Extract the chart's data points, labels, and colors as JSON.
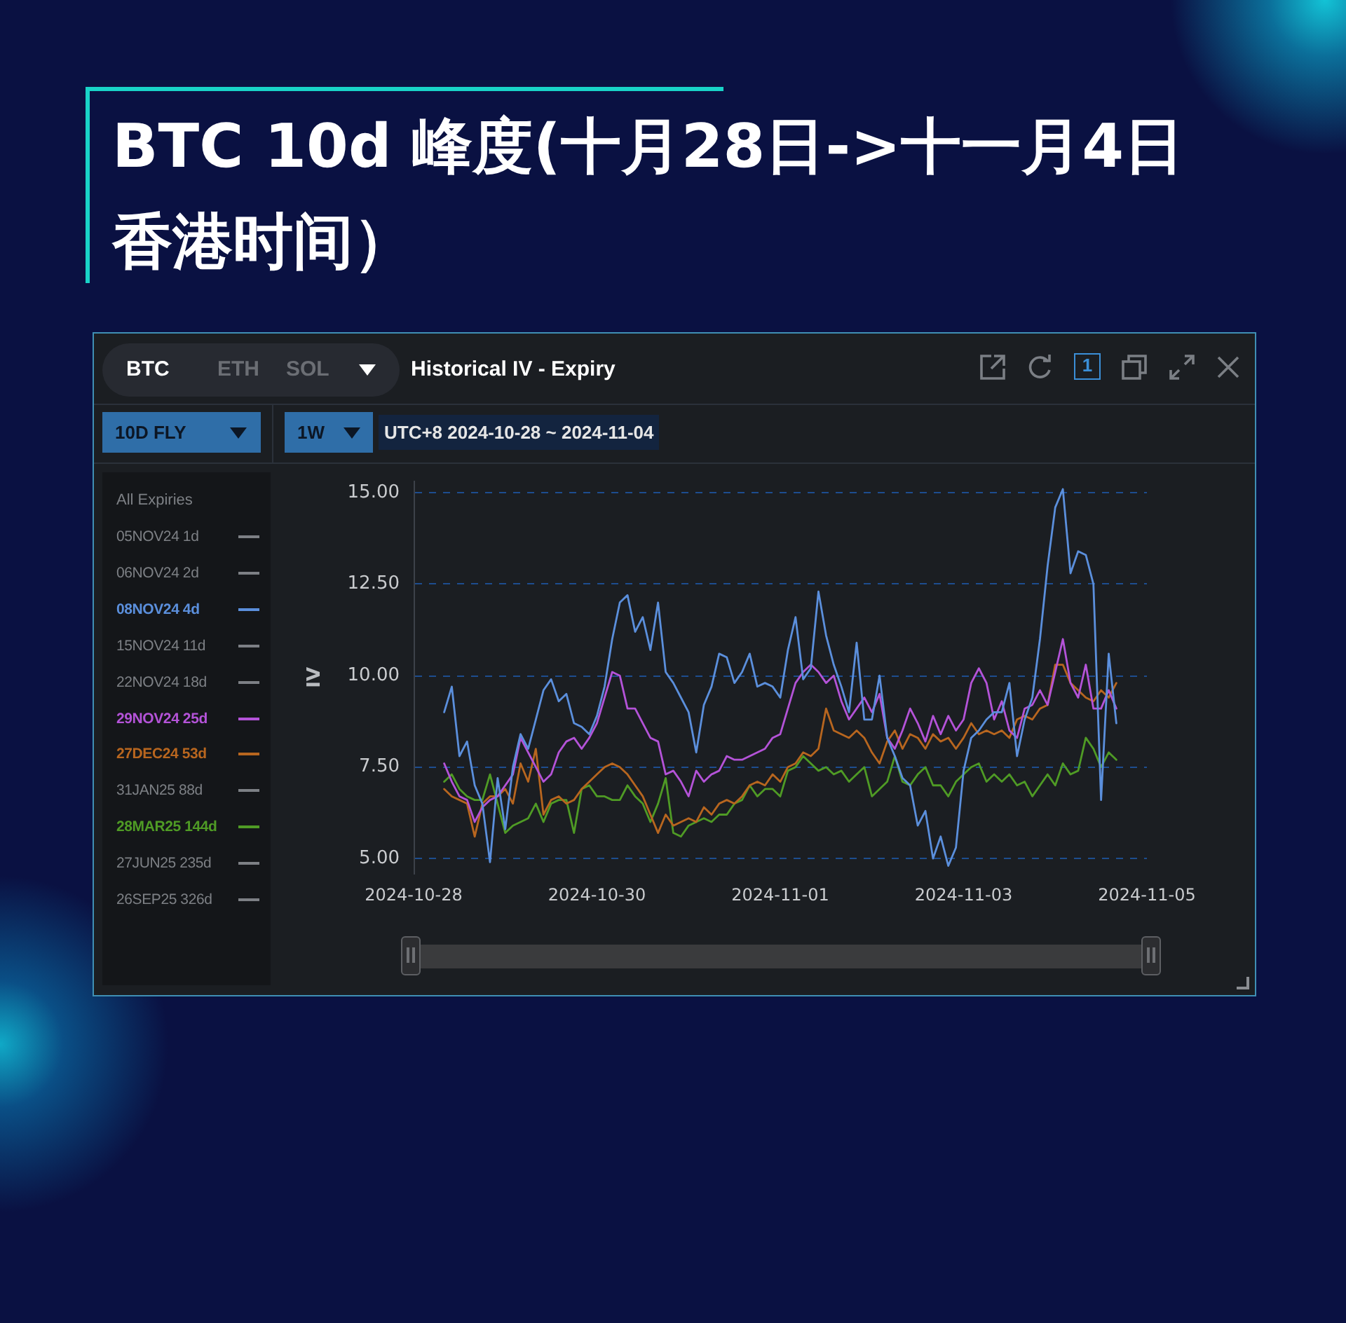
{
  "chart_data": {
    "type": "line",
    "title": "BTC 10d 峰度(十月28日->十一月4日香港时间）",
    "subtitle": "Historical IV - Expiry",
    "ylabel": "IV",
    "legend_title": "All Expiries",
    "annotations": [
      "BTC",
      "ETH",
      "SOL",
      "1",
      "10D FLY",
      "1W",
      "UTC+8 2024-10-28 ~ 2024-11-04"
    ],
    "x": [
      "2024-10-28T08:00",
      "2024-10-28T10:00",
      "2024-10-28T12:00",
      "2024-10-28T14:00",
      "2024-10-28T16:00",
      "2024-10-28T18:00",
      "2024-10-28T20:00",
      "2024-10-28T22:00",
      "2024-10-29T00:00",
      "2024-10-29T02:00",
      "2024-10-29T04:00",
      "2024-10-29T06:00",
      "2024-10-29T08:00",
      "2024-10-29T10:00",
      "2024-10-29T12:00",
      "2024-10-29T14:00",
      "2024-10-29T16:00",
      "2024-10-29T18:00",
      "2024-10-29T20:00",
      "2024-10-29T22:00",
      "2024-10-30T00:00",
      "2024-10-30T02:00",
      "2024-10-30T04:00",
      "2024-10-30T06:00",
      "2024-10-30T08:00",
      "2024-10-30T10:00",
      "2024-10-30T12:00",
      "2024-10-30T14:00",
      "2024-10-30T16:00",
      "2024-10-30T18:00",
      "2024-10-30T20:00",
      "2024-10-30T22:00",
      "2024-10-31T00:00",
      "2024-10-31T02:00",
      "2024-10-31T04:00",
      "2024-10-31T06:00",
      "2024-10-31T08:00",
      "2024-10-31T10:00",
      "2024-10-31T12:00",
      "2024-10-31T14:00",
      "2024-10-31T16:00",
      "2024-10-31T18:00",
      "2024-10-31T20:00",
      "2024-10-31T22:00",
      "2024-11-01T00:00",
      "2024-11-01T02:00",
      "2024-11-01T04:00",
      "2024-11-01T06:00",
      "2024-11-01T08:00",
      "2024-11-01T10:00",
      "2024-11-01T12:00",
      "2024-11-01T14:00",
      "2024-11-01T16:00",
      "2024-11-01T18:00",
      "2024-11-01T20:00",
      "2024-11-01T22:00",
      "2024-11-02T00:00",
      "2024-11-02T02:00",
      "2024-11-02T04:00",
      "2024-11-02T06:00",
      "2024-11-02T08:00",
      "2024-11-02T10:00",
      "2024-11-02T12:00",
      "2024-11-02T14:00",
      "2024-11-02T16:00",
      "2024-11-02T18:00",
      "2024-11-02T20:00",
      "2024-11-02T22:00",
      "2024-11-03T00:00",
      "2024-11-03T02:00",
      "2024-11-03T04:00",
      "2024-11-03T06:00",
      "2024-11-03T08:00",
      "2024-11-03T10:00",
      "2024-11-03T12:00",
      "2024-11-03T14:00",
      "2024-11-03T16:00",
      "2024-11-03T18:00",
      "2024-11-03T20:00",
      "2024-11-03T22:00",
      "2024-11-04T00:00",
      "2024-11-04T02:00",
      "2024-11-04T04:00",
      "2024-11-04T06:00",
      "2024-11-04T08:00",
      "2024-11-04T10:00",
      "2024-11-04T12:00",
      "2024-11-04T14:00",
      "2024-11-04T16:00"
    ],
    "series": [
      {
        "name": "05NOV24 1d",
        "color": "#7d8085",
        "values": [
          null,
          null,
          null,
          null,
          null,
          null,
          null,
          null,
          null,
          null,
          null,
          null,
          null,
          null,
          null,
          null,
          null,
          null,
          null,
          null,
          null,
          null,
          null,
          null,
          null,
          null,
          null,
          null,
          null,
          null,
          null,
          null,
          null,
          null,
          null,
          null,
          null,
          null,
          null,
          null,
          null,
          null,
          null,
          null,
          null,
          null,
          null,
          null,
          null,
          null,
          null,
          null,
          null,
          null,
          null,
          null,
          null,
          null,
          null,
          null,
          null,
          null,
          null,
          null,
          null,
          null,
          null,
          null,
          null,
          null,
          null,
          null,
          null,
          null,
          null,
          null,
          null,
          null,
          null,
          null,
          null,
          null,
          null,
          null,
          null,
          null,
          null,
          null,
          null
        ]
      },
      {
        "name": "06NOV24 2d",
        "color": "#7d8085",
        "values": [
          null,
          null,
          null,
          null,
          null,
          null,
          null,
          null,
          null,
          null,
          null,
          null,
          null,
          null,
          null,
          null,
          null,
          null,
          null,
          null,
          null,
          null,
          null,
          null,
          null,
          null,
          null,
          null,
          null,
          null,
          null,
          null,
          null,
          null,
          null,
          null,
          null,
          null,
          null,
          null,
          null,
          null,
          null,
          null,
          null,
          null,
          null,
          null,
          null,
          null,
          null,
          null,
          null,
          null,
          null,
          null,
          null,
          null,
          null,
          null,
          null,
          null,
          null,
          null,
          null,
          null,
          null,
          null,
          null,
          null,
          null,
          null,
          null,
          null,
          null,
          null,
          null,
          null,
          null,
          null,
          null,
          null,
          null,
          null,
          null,
          null,
          null,
          null,
          null
        ]
      },
      {
        "name": "08NOV24 4d",
        "color": "#5b8fdc",
        "values": [
          9.0,
          9.7,
          7.8,
          8.2,
          7.0,
          6.5,
          4.9,
          7.2,
          5.8,
          7.5,
          8.4,
          8.0,
          8.8,
          9.6,
          9.9,
          9.3,
          9.5,
          8.7,
          8.6,
          8.4,
          8.9,
          9.7,
          11.0,
          12.0,
          12.2,
          11.2,
          11.6,
          10.7,
          12.0,
          10.1,
          9.8,
          9.4,
          9.0,
          7.9,
          9.2,
          9.7,
          10.6,
          10.5,
          9.8,
          10.1,
          10.6,
          9.7,
          9.8,
          9.7,
          9.4,
          10.7,
          11.6,
          9.9,
          10.2,
          12.3,
          11.1,
          10.3,
          9.7,
          9.0,
          10.9,
          8.8,
          8.8,
          10.0,
          8.3,
          7.8,
          7.2,
          7.0,
          5.9,
          6.3,
          5.0,
          5.6,
          4.8,
          5.3,
          7.4,
          8.3,
          8.5,
          8.8,
          9.0,
          9.0,
          9.8,
          7.8,
          8.8,
          9.4,
          11.0,
          13.0,
          14.6,
          15.1,
          12.8,
          13.4,
          13.3,
          12.5,
          6.6,
          10.6,
          8.7
        ]
      },
      {
        "name": "15NOV24 11d",
        "color": "#7d8085",
        "values": [
          null,
          null,
          null,
          null,
          null,
          null,
          null,
          null,
          null,
          null,
          null,
          null,
          null,
          null,
          null,
          null,
          null,
          null,
          null,
          null,
          null,
          null,
          null,
          null,
          null,
          null,
          null,
          null,
          null,
          null,
          null,
          null,
          null,
          null,
          null,
          null,
          null,
          null,
          null,
          null,
          null,
          null,
          null,
          null,
          null,
          null,
          null,
          null,
          null,
          null,
          null,
          null,
          null,
          null,
          null,
          null,
          null,
          null,
          null,
          null,
          null,
          null,
          null,
          null,
          null,
          null,
          null,
          null,
          null,
          null,
          null,
          null,
          null,
          null,
          null,
          null,
          null,
          null,
          null,
          null,
          null,
          null,
          null,
          null,
          null,
          null,
          null,
          null,
          null
        ]
      },
      {
        "name": "22NOV24 18d",
        "color": "#7d8085",
        "values": [
          null,
          null,
          null,
          null,
          null,
          null,
          null,
          null,
          null,
          null,
          null,
          null,
          null,
          null,
          null,
          null,
          null,
          null,
          null,
          null,
          null,
          null,
          null,
          null,
          null,
          null,
          null,
          null,
          null,
          null,
          null,
          null,
          null,
          null,
          null,
          null,
          null,
          null,
          null,
          null,
          null,
          null,
          null,
          null,
          null,
          null,
          null,
          null,
          null,
          null,
          null,
          null,
          null,
          null,
          null,
          null,
          null,
          null,
          null,
          null,
          null,
          null,
          null,
          null,
          null,
          null,
          null,
          null,
          null,
          null,
          null,
          null,
          null,
          null,
          null,
          null,
          null,
          null,
          null,
          null,
          null,
          null,
          null,
          null,
          null,
          null,
          null,
          null,
          null
        ]
      },
      {
        "name": "29NOV24 25d",
        "color": "#b453d8",
        "values": [
          7.6,
          7.1,
          6.7,
          6.6,
          6.0,
          6.4,
          6.6,
          6.7,
          7.0,
          7.3,
          8.3,
          7.9,
          7.5,
          7.1,
          7.3,
          7.9,
          8.2,
          8.3,
          8.0,
          8.3,
          8.7,
          9.4,
          10.1,
          10.0,
          9.1,
          9.1,
          8.7,
          8.3,
          8.2,
          7.3,
          7.4,
          7.1,
          6.7,
          7.4,
          7.1,
          7.3,
          7.4,
          7.8,
          7.7,
          7.7,
          7.8,
          7.9,
          8.0,
          8.3,
          8.4,
          9.1,
          9.8,
          10.1,
          10.3,
          10.1,
          9.8,
          10.0,
          9.3,
          8.8,
          9.1,
          9.4,
          9.0,
          9.5,
          8.3,
          8.0,
          8.5,
          9.1,
          8.7,
          8.2,
          8.9,
          8.4,
          8.9,
          8.5,
          8.8,
          9.8,
          10.2,
          9.8,
          8.8,
          9.3,
          8.5,
          8.3,
          9.1,
          9.2,
          9.6,
          9.2,
          10.1,
          11.0,
          9.8,
          9.4,
          10.3,
          9.1,
          9.1,
          9.6,
          9.1
        ]
      },
      {
        "name": "27DEC24 53d",
        "color": "#b8661f",
        "values": [
          6.9,
          6.7,
          6.6,
          6.5,
          5.6,
          6.5,
          6.7,
          6.7,
          6.9,
          6.5,
          7.6,
          7.1,
          8.0,
          6.2,
          6.6,
          6.7,
          6.5,
          6.6,
          6.9,
          7.1,
          7.3,
          7.5,
          7.6,
          7.5,
          7.3,
          7.0,
          6.7,
          6.2,
          5.7,
          6.2,
          5.9,
          6.0,
          6.1,
          6.0,
          6.4,
          6.2,
          6.5,
          6.6,
          6.5,
          6.7,
          7.0,
          7.1,
          7.0,
          7.3,
          7.1,
          7.5,
          7.6,
          7.9,
          7.8,
          8.0,
          9.1,
          8.5,
          8.4,
          8.3,
          8.5,
          8.3,
          7.9,
          7.6,
          8.2,
          8.5,
          8.0,
          8.4,
          8.3,
          8.0,
          8.4,
          8.2,
          8.3,
          8.0,
          8.3,
          8.7,
          8.4,
          8.5,
          8.4,
          8.5,
          8.3,
          8.8,
          8.9,
          8.8,
          9.1,
          9.2,
          10.3,
          10.3,
          9.8,
          9.6,
          9.4,
          9.3,
          9.6,
          9.4,
          9.8
        ]
      },
      {
        "name": "31JAN25 88d",
        "color": "#7d8085",
        "values": [
          null,
          null,
          null,
          null,
          null,
          null,
          null,
          null,
          null,
          null,
          null,
          null,
          null,
          null,
          null,
          null,
          null,
          null,
          null,
          null,
          null,
          null,
          null,
          null,
          null,
          null,
          null,
          null,
          null,
          null,
          null,
          null,
          null,
          null,
          null,
          null,
          null,
          null,
          null,
          null,
          null,
          null,
          null,
          null,
          null,
          null,
          null,
          null,
          null,
          null,
          null,
          null,
          null,
          null,
          null,
          null,
          null,
          null,
          null,
          null,
          null,
          null,
          null,
          null,
          null,
          null,
          null,
          null,
          null,
          null,
          null,
          null,
          null,
          null,
          null,
          null,
          null,
          null,
          null,
          null,
          null,
          null,
          null,
          null,
          null,
          null,
          null,
          null,
          null
        ]
      },
      {
        "name": "28MAR25 144d",
        "color": "#4f9b25",
        "values": [
          7.1,
          7.3,
          6.9,
          6.7,
          6.6,
          6.6,
          7.3,
          6.5,
          5.7,
          5.9,
          6.0,
          6.1,
          6.5,
          6.0,
          6.5,
          6.6,
          6.6,
          5.7,
          6.9,
          7.0,
          6.7,
          6.7,
          6.6,
          6.6,
          7.0,
          6.7,
          6.5,
          6.0,
          6.5,
          7.2,
          5.7,
          5.6,
          5.9,
          6.0,
          6.1,
          6.0,
          6.2,
          6.2,
          6.5,
          6.6,
          7.0,
          6.7,
          6.9,
          6.9,
          6.7,
          7.4,
          7.5,
          7.8,
          7.6,
          7.4,
          7.5,
          7.3,
          7.4,
          7.1,
          7.3,
          7.5,
          6.7,
          6.9,
          7.1,
          7.8,
          7.1,
          7.0,
          7.3,
          7.5,
          7.0,
          7.0,
          6.7,
          7.1,
          7.3,
          7.5,
          7.6,
          7.1,
          7.3,
          7.1,
          7.3,
          7.0,
          7.1,
          6.7,
          7.0,
          7.3,
          7.0,
          7.6,
          7.3,
          7.4,
          8.3,
          8.0,
          7.5,
          7.9,
          7.7
        ]
      },
      {
        "name": "27JUN25 235d",
        "color": "#7d8085",
        "values": [
          null,
          null,
          null,
          null,
          null,
          null,
          null,
          null,
          null,
          null,
          null,
          null,
          null,
          null,
          null,
          null,
          null,
          null,
          null,
          null,
          null,
          null,
          null,
          null,
          null,
          null,
          null,
          null,
          null,
          null,
          null,
          null,
          null,
          null,
          null,
          null,
          null,
          null,
          null,
          null,
          null,
          null,
          null,
          null,
          null,
          null,
          null,
          null,
          null,
          null,
          null,
          null,
          null,
          null,
          null,
          null,
          null,
          null,
          null,
          null,
          null,
          null,
          null,
          null,
          null,
          null,
          null,
          null,
          null,
          null,
          null,
          null,
          null,
          null,
          null,
          null,
          null,
          null,
          null,
          null,
          null,
          null,
          null,
          null,
          null,
          null,
          null,
          null,
          null
        ]
      },
      {
        "name": "26SEP25 326d",
        "color": "#7d8085",
        "values": [
          null,
          null,
          null,
          null,
          null,
          null,
          null,
          null,
          null,
          null,
          null,
          null,
          null,
          null,
          null,
          null,
          null,
          null,
          null,
          null,
          null,
          null,
          null,
          null,
          null,
          null,
          null,
          null,
          null,
          null,
          null,
          null,
          null,
          null,
          null,
          null,
          null,
          null,
          null,
          null,
          null,
          null,
          null,
          null,
          null,
          null,
          null,
          null,
          null,
          null,
          null,
          null,
          null,
          null,
          null,
          null,
          null,
          null,
          null,
          null,
          null,
          null,
          null,
          null,
          null,
          null,
          null,
          null,
          null,
          null,
          null,
          null,
          null,
          null,
          null,
          null,
          null,
          null,
          null,
          null,
          null,
          null,
          null,
          null,
          null,
          null,
          null,
          null,
          null
        ]
      }
    ],
    "xlim": [
      "2024-10-28",
      "2024-11-05"
    ],
    "xticks": [
      "2024-10-28",
      "2024-10-30",
      "2024-11-01",
      "2024-11-03",
      "2024-11-05"
    ],
    "ylim": [
      4.6,
      15.3
    ],
    "yticks": [
      {
        "value": 5,
        "label": "5.00"
      },
      {
        "value": 7.5,
        "label": "7.50"
      },
      {
        "value": 10,
        "label": "10.00"
      },
      {
        "value": 12.5,
        "label": "12.50"
      },
      {
        "value": 15,
        "label": "15.00"
      }
    ],
    "grid": "y",
    "legend": "left",
    "marker": "none"
  }
}
